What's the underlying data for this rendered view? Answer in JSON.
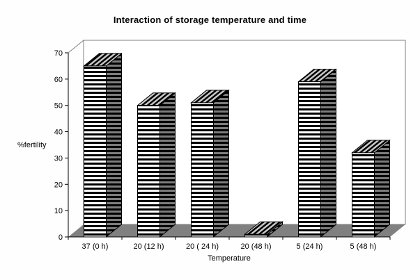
{
  "chart_data": {
    "type": "bar",
    "projection": "3d",
    "title": "Interaction of storage temperature and time",
    "xlabel": "Temperature",
    "ylabel": "%fertility",
    "categories": [
      "37 (0 h)",
      "20 (12 h)",
      "20 ( 24 h)",
      "20 (48 h)",
      "5 (24 h)",
      "5 (48 h)"
    ],
    "values": [
      65,
      50,
      51,
      1,
      59,
      32
    ],
    "ylim": [
      0,
      70
    ],
    "ytick_step": 10,
    "yticks": [
      0,
      10,
      20,
      30,
      40,
      50,
      60,
      70
    ],
    "grid": false,
    "legend": false,
    "bar_fill": "black-white horizontal hatch",
    "colors": {
      "front_bg": "#ffffff",
      "front_stripe": "#000000",
      "side_bg": "#7d7d7d",
      "side_stripe": "#000000",
      "top_bg": "#c9c9c9",
      "top_stripe": "#000000",
      "floor": "#808080",
      "wall_fill": "#ffffff",
      "wall_border": "#808080",
      "axis": "#000000",
      "text": "#000000"
    }
  }
}
